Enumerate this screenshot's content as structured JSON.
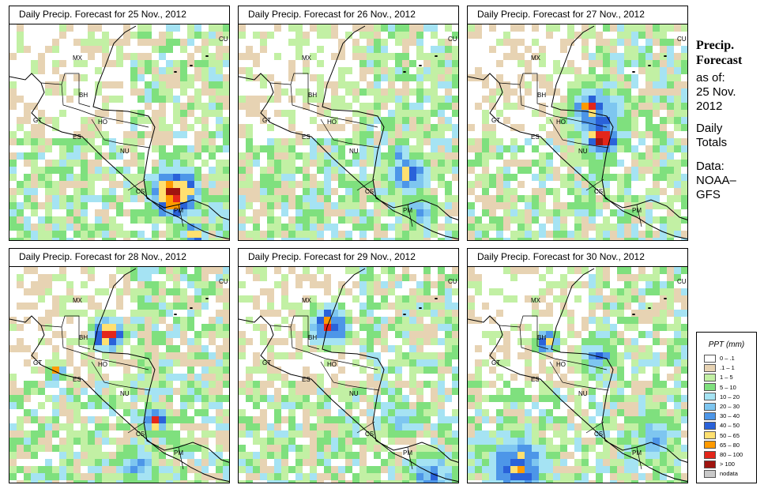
{
  "panels": [
    {
      "title": "Daily Precip. Forecast for  25 Nov., 2012"
    },
    {
      "title": "Daily Precip. Forecast for  26 Nov., 2012"
    },
    {
      "title": "Daily Precip. Forecast for  27 Nov., 2012"
    },
    {
      "title": "Daily Precip. Forecast for  28 Nov., 2012"
    },
    {
      "title": "Daily Precip. Forecast for  29 Nov., 2012"
    },
    {
      "title": "Daily Precip. Forecast for  30 Nov., 2012"
    }
  ],
  "country_labels": [
    "MX",
    "CU",
    "BH",
    "GT",
    "HO",
    "ES",
    "NU",
    "CS",
    "PM"
  ],
  "side": {
    "title_line1": "Precip.",
    "title_line2": "Forecast",
    "asof_line1": "as of:",
    "asof_line2": "25 Nov.",
    "asof_line3": "2012",
    "daily_line1": "Daily",
    "daily_line2": "Totals",
    "data_line1": "Data:",
    "data_line2": "NOAA–",
    "data_line3": "GFS"
  },
  "legend": {
    "title": "PPT (mm)",
    "items": [
      {
        "label": "0 – .1",
        "color": "#ffffff"
      },
      {
        "label": ".1 – 1",
        "color": "#e7d3b3"
      },
      {
        "label": "1 – 5",
        "color": "#c2f0a4"
      },
      {
        "label": "5 – 10",
        "color": "#7fe07e"
      },
      {
        "label": "10 – 20",
        "color": "#a5e3f3"
      },
      {
        "label": "20 – 30",
        "color": "#7ec6f0"
      },
      {
        "label": "30 – 40",
        "color": "#4d96e8"
      },
      {
        "label": "40 – 50",
        "color": "#2a62d9"
      },
      {
        "label": "50 – 65",
        "color": "#ffe070"
      },
      {
        "label": "65 – 80",
        "color": "#ff9a00"
      },
      {
        "label": "80 – 100",
        "color": "#e3261a"
      },
      {
        "label": "> 100",
        "color": "#a0140f"
      },
      {
        "label": "nodata",
        "color": "#c8c8c8"
      }
    ]
  }
}
